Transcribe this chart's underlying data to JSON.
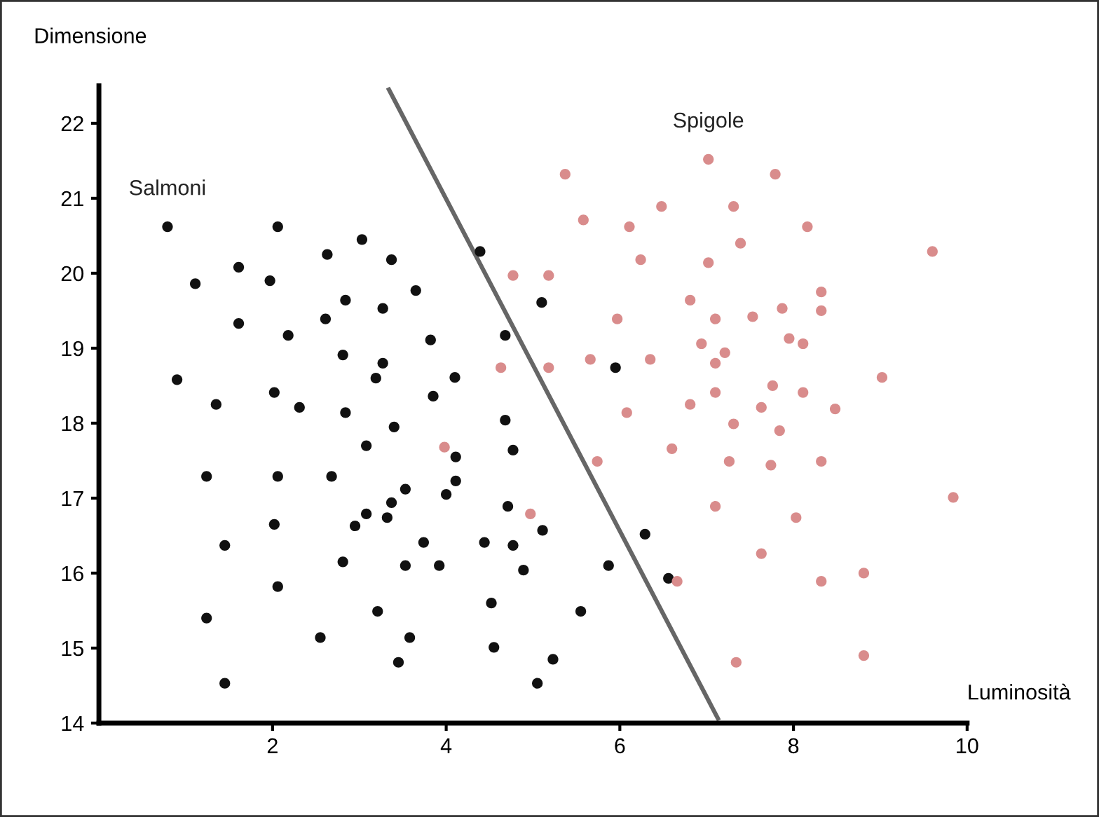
{
  "chart_data": {
    "type": "scatter",
    "xlabel": "Luminosità",
    "ylabel": "Dimensione",
    "marker": "circle",
    "xlim": [
      0,
      10
    ],
    "ylim": [
      14,
      22.5
    ],
    "xticks": [
      2,
      4,
      6,
      8,
      10
    ],
    "yticks": [
      14,
      15,
      16,
      17,
      18,
      19,
      20,
      21,
      22
    ],
    "series": [
      {
        "name": "Salmoni",
        "color": "#111111",
        "x": [
          0.79,
          1.11,
          1.61,
          2.06,
          1.97,
          2.63,
          3.03,
          3.37,
          2.84,
          3.27,
          3.65,
          1.61,
          2.18,
          2.61,
          2.81,
          3.27,
          3.19,
          3.82,
          4.1,
          3.85,
          4.68,
          4.39,
          0.9,
          1.35,
          2.02,
          2.31,
          2.84,
          3.4,
          4.68,
          5.1,
          5.95,
          1.24,
          2.06,
          2.68,
          3.08,
          4.11,
          4.77,
          1.45,
          2.02,
          2.95,
          3.08,
          3.37,
          3.53,
          3.32,
          4.0,
          4.11,
          4.71,
          2.81,
          3.74,
          3.53,
          3.92,
          4.44,
          4.77,
          4.89,
          5.11,
          2.06,
          1.24,
          3.21,
          4.52,
          2.55,
          3.58,
          3.45,
          4.55,
          1.45,
          5.05,
          5.23,
          6.29,
          5.87,
          6.56,
          5.55
        ],
        "values": [
          20.62,
          19.86,
          20.08,
          20.62,
          19.9,
          20.25,
          20.45,
          20.18,
          19.64,
          19.53,
          19.77,
          19.33,
          19.17,
          19.39,
          18.91,
          18.8,
          18.6,
          19.11,
          18.61,
          18.36,
          19.17,
          20.29,
          18.58,
          18.25,
          18.41,
          18.21,
          18.14,
          17.95,
          18.04,
          19.61,
          18.74,
          17.29,
          17.29,
          17.29,
          17.7,
          17.55,
          17.64,
          16.37,
          16.65,
          16.63,
          16.79,
          16.94,
          17.12,
          16.74,
          17.05,
          17.23,
          16.89,
          16.15,
          16.41,
          16.1,
          16.1,
          16.41,
          16.37,
          16.04,
          16.57,
          15.82,
          15.4,
          15.49,
          15.6,
          15.14,
          15.14,
          14.81,
          15.01,
          14.53,
          14.53,
          14.85,
          16.52,
          16.1,
          15.93,
          15.49
        ]
      },
      {
        "name": "Spigole",
        "color": "#d98c8c",
        "x": [
          5.37,
          7.02,
          7.79,
          5.58,
          6.11,
          6.48,
          7.31,
          8.16,
          7.39,
          6.24,
          7.02,
          9.6,
          4.77,
          5.18,
          6.81,
          7.1,
          7.53,
          7.87,
          8.32,
          8.32,
          5.97,
          6.94,
          7.21,
          7.1,
          7.95,
          8.11,
          4.63,
          5.18,
          5.66,
          6.35,
          9.02,
          7.76,
          8.11,
          7.1,
          6.81,
          7.63,
          8.48,
          6.08,
          7.31,
          7.84,
          5.74,
          6.6,
          7.26,
          7.74,
          8.32,
          4.97,
          7.1,
          8.03,
          9.84,
          7.63,
          8.32,
          8.81,
          6.66,
          7.34,
          8.81,
          3.98
        ],
        "values": [
          21.32,
          21.52,
          21.32,
          20.71,
          20.62,
          20.89,
          20.89,
          20.62,
          20.4,
          20.18,
          20.14,
          20.29,
          19.97,
          19.97,
          19.64,
          19.39,
          19.42,
          19.53,
          19.75,
          19.5,
          19.39,
          19.06,
          18.94,
          18.8,
          19.13,
          19.06,
          18.74,
          18.74,
          18.85,
          18.85,
          18.61,
          18.5,
          18.41,
          18.41,
          18.25,
          18.21,
          18.19,
          18.14,
          17.99,
          17.9,
          17.49,
          17.66,
          17.49,
          17.44,
          17.49,
          16.79,
          16.89,
          16.74,
          17.01,
          16.26,
          15.89,
          16.0,
          15.89,
          14.81,
          14.9,
          17.68
        ]
      },
      {
        "type": "line",
        "marker": "none",
        "color": "#666666",
        "x": [
          3.34,
          7.13
        ],
        "values": [
          22.45,
          14.06
        ]
      }
    ]
  }
}
